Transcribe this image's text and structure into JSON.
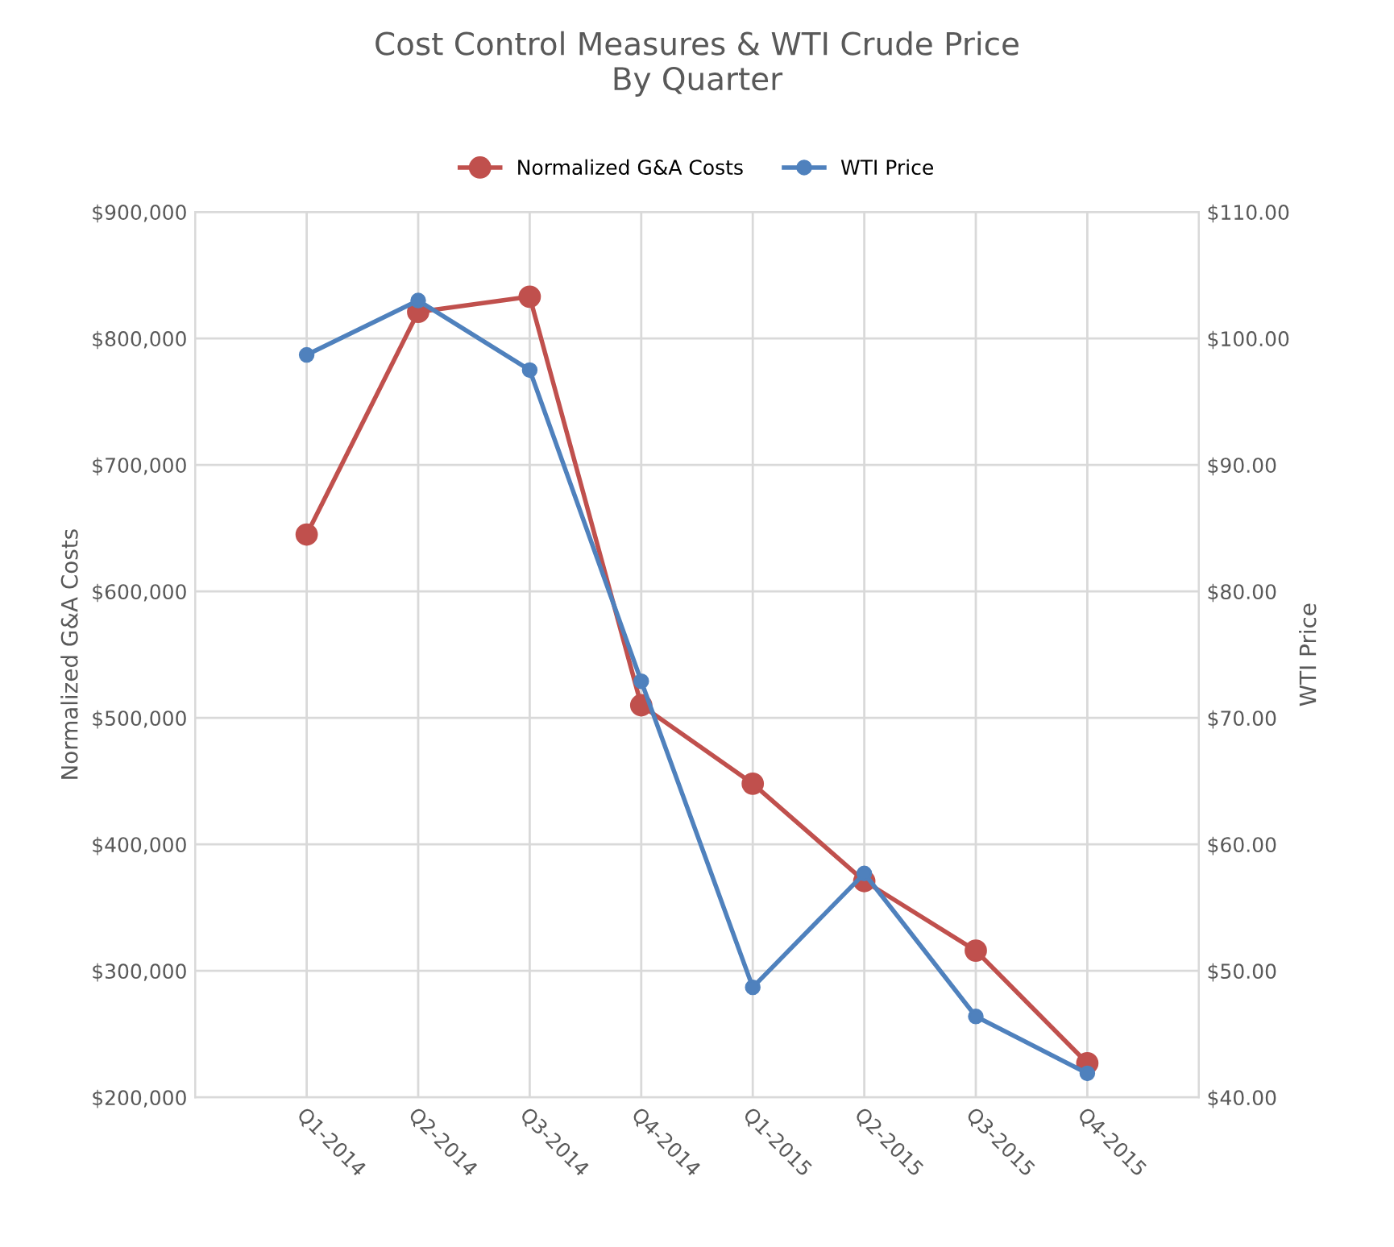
{
  "chart_data": {
    "type": "line",
    "title": "Cost Control Measures & WTI Crude Price\nBy Quarter",
    "categories": [
      "Q1-2014",
      "Q2-2014",
      "Q3-2014",
      "Q4-2014",
      "Q1-2015",
      "Q2-2015",
      "Q3-2015",
      "Q4-2015"
    ],
    "series": [
      {
        "name": "Normalized G&A Costs",
        "color": "#c0504d",
        "values": [
          645000,
          821000,
          833000,
          510000,
          448000,
          371000,
          316000,
          227000
        ]
      },
      {
        "name": "WTI Price",
        "color": "#4f81bd",
        "axis": "y2",
        "values": [
          98.7,
          103.0,
          97.5,
          72.9,
          48.7,
          57.7,
          46.4,
          41.9
        ]
      }
    ],
    "ylabel": "Normalized G&A Costs",
    "y2label": "WTI Price",
    "ylim": [
      200000,
      900000
    ],
    "yticks": [
      {
        "value": 200000,
        "label": "$200,000"
      },
      {
        "value": 300000,
        "label": "$300,000"
      },
      {
        "value": 400000,
        "label": "$400,000"
      },
      {
        "value": 500000,
        "label": "$500,000"
      },
      {
        "value": 600000,
        "label": "$600,000"
      },
      {
        "value": 700000,
        "label": "$700,000"
      },
      {
        "value": 800000,
        "label": "$800,000"
      },
      {
        "value": 900000,
        "label": "$900,000"
      }
    ],
    "y2lim": [
      40,
      110
    ],
    "y2ticks": [
      {
        "value": 40,
        "label": "$40.00"
      },
      {
        "value": 50,
        "label": "$50.00"
      },
      {
        "value": 60,
        "label": "$60.00"
      },
      {
        "value": 70,
        "label": "$70.00"
      },
      {
        "value": 80,
        "label": "$80.00"
      },
      {
        "value": 90,
        "label": "$90.00"
      },
      {
        "value": 100,
        "label": "$100.00"
      },
      {
        "value": 110,
        "label": "$110.00"
      }
    ],
    "grid": true,
    "legend": "top",
    "marker": "circle",
    "line_style": "solid"
  }
}
